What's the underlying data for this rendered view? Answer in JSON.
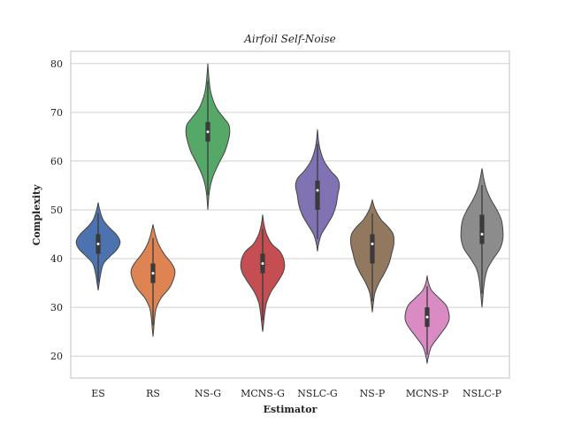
{
  "chart_data": {
    "type": "violin",
    "title": "Airfoil Self-Noise",
    "xlabel": "Estimator",
    "ylabel": "Complexity",
    "ylim": [
      15.5,
      82.5
    ],
    "yticks": [
      20,
      30,
      40,
      50,
      60,
      70,
      80
    ],
    "grid": "horizontal",
    "categories": [
      "ES",
      "RS",
      "NS-G",
      "MCNS-G",
      "NSLC-G",
      "NS-P",
      "MCNS-P",
      "NSLC-P"
    ],
    "series": [
      {
        "category": "ES",
        "color": "#4c72b0",
        "min": 33.5,
        "max": 51.5,
        "q1": 41,
        "median": 43,
        "q3": 45,
        "density": [
          [
            33.5,
            0
          ],
          [
            35,
            0.05
          ],
          [
            37,
            0.12
          ],
          [
            39,
            0.25
          ],
          [
            40.5,
            0.55
          ],
          [
            42,
            0.88
          ],
          [
            43.5,
            1.0
          ],
          [
            45,
            0.82
          ],
          [
            46.5,
            0.48
          ],
          [
            48,
            0.22
          ],
          [
            50,
            0.07
          ],
          [
            51.5,
            0
          ]
        ]
      },
      {
        "category": "RS",
        "color": "#dd8452",
        "min": 24,
        "max": 47,
        "q1": 35,
        "median": 37,
        "q3": 39,
        "density": [
          [
            24,
            0
          ],
          [
            26,
            0.04
          ],
          [
            28,
            0.08
          ],
          [
            30,
            0.16
          ],
          [
            32,
            0.38
          ],
          [
            34,
            0.75
          ],
          [
            36,
            0.95
          ],
          [
            37.5,
            1.0
          ],
          [
            39,
            0.85
          ],
          [
            41,
            0.5
          ],
          [
            43,
            0.25
          ],
          [
            45,
            0.1
          ],
          [
            47,
            0
          ]
        ]
      },
      {
        "category": "NS-G",
        "color": "#55a868",
        "min": 50,
        "max": 80,
        "q1": 64,
        "median": 66,
        "q3": 68,
        "density": [
          [
            50,
            0
          ],
          [
            53,
            0.05
          ],
          [
            55,
            0.12
          ],
          [
            57,
            0.25
          ],
          [
            59.5,
            0.5
          ],
          [
            62,
            0.78
          ],
          [
            64.5,
            0.95
          ],
          [
            66,
            1.0
          ],
          [
            67.5,
            0.95
          ],
          [
            69,
            0.7
          ],
          [
            71,
            0.38
          ],
          [
            74,
            0.14
          ],
          [
            77,
            0.05
          ],
          [
            80,
            0
          ]
        ]
      },
      {
        "category": "MCNS-G",
        "color": "#c44e52",
        "min": 25,
        "max": 49,
        "q1": 37,
        "median": 39,
        "q3": 41,
        "density": [
          [
            25,
            0
          ],
          [
            27,
            0.05
          ],
          [
            29,
            0.1
          ],
          [
            31,
            0.18
          ],
          [
            33,
            0.36
          ],
          [
            35,
            0.65
          ],
          [
            37,
            0.92
          ],
          [
            38.5,
            1.0
          ],
          [
            40,
            0.95
          ],
          [
            41.5,
            0.78
          ],
          [
            43,
            0.42
          ],
          [
            45,
            0.18
          ],
          [
            47,
            0.06
          ],
          [
            49,
            0
          ]
        ]
      },
      {
        "category": "NSLC-G",
        "color": "#8172b3",
        "min": 41.5,
        "max": 66.5,
        "q1": 50,
        "median": 54,
        "q3": 56,
        "density": [
          [
            41.5,
            0
          ],
          [
            43,
            0.05
          ],
          [
            45,
            0.18
          ],
          [
            47,
            0.45
          ],
          [
            49,
            0.7
          ],
          [
            51,
            0.85
          ],
          [
            53,
            0.92
          ],
          [
            55,
            1.0
          ],
          [
            56.5,
            0.9
          ],
          [
            58,
            0.6
          ],
          [
            60,
            0.3
          ],
          [
            62,
            0.14
          ],
          [
            64,
            0.05
          ],
          [
            66.5,
            0
          ]
        ]
      },
      {
        "category": "NS-P",
        "color": "#937860",
        "min": 29,
        "max": 52,
        "q1": 39,
        "median": 43,
        "q3": 45,
        "density": [
          [
            29,
            0
          ],
          [
            31,
            0.05
          ],
          [
            33,
            0.12
          ],
          [
            35,
            0.3
          ],
          [
            37,
            0.55
          ],
          [
            39,
            0.76
          ],
          [
            41,
            0.88
          ],
          [
            43,
            0.98
          ],
          [
            45,
            0.95
          ],
          [
            46.5,
            0.72
          ],
          [
            48,
            0.4
          ],
          [
            50,
            0.14
          ],
          [
            52,
            0
          ]
        ]
      },
      {
        "category": "MCNS-P",
        "color": "#da8bc3",
        "min": 18.5,
        "max": 36.5,
        "q1": 26,
        "median": 28,
        "q3": 30,
        "density": [
          [
            18.5,
            0
          ],
          [
            20,
            0.06
          ],
          [
            22,
            0.2
          ],
          [
            24,
            0.52
          ],
          [
            26,
            0.85
          ],
          [
            27.5,
            1.0
          ],
          [
            29,
            0.98
          ],
          [
            30.5,
            0.85
          ],
          [
            32,
            0.52
          ],
          [
            33.5,
            0.2
          ],
          [
            35,
            0.06
          ],
          [
            36.5,
            0
          ]
        ]
      },
      {
        "category": "NSLC-P",
        "color": "#8c8c8c",
        "min": 30,
        "max": 58.5,
        "q1": 43,
        "median": 45,
        "q3": 49,
        "density": [
          [
            30,
            0
          ],
          [
            32,
            0.04
          ],
          [
            34,
            0.08
          ],
          [
            36,
            0.14
          ],
          [
            38,
            0.26
          ],
          [
            40,
            0.52
          ],
          [
            42,
            0.82
          ],
          [
            44,
            0.95
          ],
          [
            46,
            0.95
          ],
          [
            48,
            0.88
          ],
          [
            50,
            0.68
          ],
          [
            52,
            0.42
          ],
          [
            54,
            0.22
          ],
          [
            56,
            0.1
          ],
          [
            58.5,
            0
          ]
        ]
      }
    ]
  }
}
